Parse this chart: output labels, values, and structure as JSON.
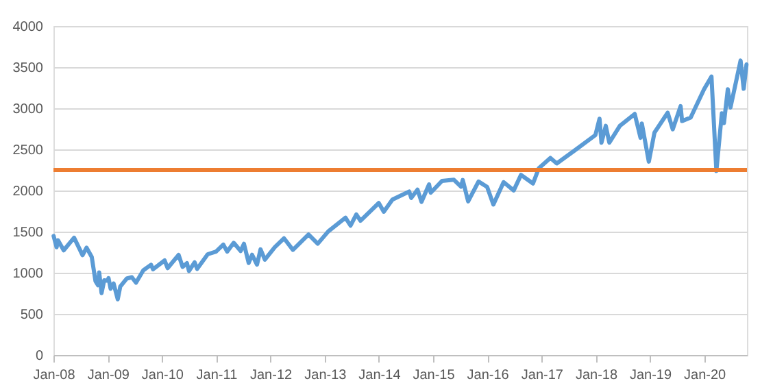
{
  "chart_data": {
    "type": "line",
    "x": [
      "2008-01-02",
      "2008-01-22",
      "2008-02-01",
      "2008-03-10",
      "2008-05-19",
      "2008-07-15",
      "2008-08-11",
      "2008-09-15",
      "2008-10-10",
      "2008-10-27",
      "2008-11-04",
      "2008-11-20",
      "2008-12-08",
      "2008-12-31",
      "2009-01-06",
      "2009-01-20",
      "2009-02-09",
      "2009-03-09",
      "2009-03-26",
      "2009-05-08",
      "2009-06-12",
      "2009-07-10",
      "2009-08-28",
      "2009-10-19",
      "2009-11-02",
      "2010-01-19",
      "2010-02-08",
      "2010-04-23",
      "2010-05-20",
      "2010-06-18",
      "2010-07-02",
      "2010-08-09",
      "2010-08-26",
      "2010-11-05",
      "2010-12-31",
      "2011-02-18",
      "2011-03-16",
      "2011-04-29",
      "2011-06-15",
      "2011-07-07",
      "2011-08-08",
      "2011-08-31",
      "2011-10-03",
      "2011-10-27",
      "2011-11-25",
      "2012-01-31",
      "2012-04-02",
      "2012-06-01",
      "2012-09-14",
      "2012-11-15",
      "2013-01-25",
      "2013-05-21",
      "2013-06-24",
      "2013-08-02",
      "2013-08-30",
      "2013-12-31",
      "2014-02-03",
      "2014-04-02",
      "2014-07-24",
      "2014-08-07",
      "2014-09-18",
      "2014-10-15",
      "2014-12-05",
      "2014-12-16",
      "2015-03-02",
      "2015-05-21",
      "2015-07-08",
      "2015-07-20",
      "2015-08-25",
      "2015-11-03",
      "2015-12-31",
      "2016-02-11",
      "2016-04-20",
      "2016-06-27",
      "2016-08-15",
      "2016-11-04",
      "2016-12-13",
      "2017-03-01",
      "2017-04-13",
      "2017-08-07",
      "2017-12-29",
      "2018-01-26",
      "2018-02-08",
      "2018-03-09",
      "2018-04-02",
      "2018-06-12",
      "2018-09-20",
      "2018-10-29",
      "2018-11-07",
      "2018-12-24",
      "2019-01-31",
      "2019-04-30",
      "2019-06-03",
      "2019-07-26",
      "2019-08-05",
      "2019-10-02",
      "2019-12-31",
      "2020-02-19",
      "2020-03-23",
      "2020-04-29",
      "2020-05-13",
      "2020-06-08",
      "2020-06-26",
      "2020-09-02",
      "2020-09-23",
      "2020-10-12"
    ],
    "series": [
      {
        "color": "#5b9bd5",
        "values": [
          1447,
          1310,
          1395,
          1273,
          1426,
          1214,
          1305,
          1192,
          899,
          848,
          1005,
          752,
          909,
          903,
          935,
          805,
          870,
          677,
          832,
          929,
          946,
          879,
          1029,
          1097,
          1042,
          1150,
          1056,
          1217,
          1071,
          1117,
          1022,
          1127,
          1047,
          1225,
          1258,
          1343,
          1257,
          1364,
          1265,
          1353,
          1119,
          1219,
          1099,
          1285,
          1159,
          1312,
          1419,
          1278,
          1466,
          1353,
          1503,
          1669,
          1573,
          1709,
          1633,
          1848,
          1742,
          1890,
          1988,
          1910,
          2011,
          1862,
          2075,
          1973,
          2117,
          2131,
          2046,
          2128,
          1868,
          2109,
          2044,
          1829,
          2102,
          2001,
          2190,
          2085,
          2271,
          2396,
          2329,
          2481,
          2674,
          2873,
          2581,
          2786,
          2582,
          2787,
          2931,
          2641,
          2814,
          2351,
          2704,
          2946,
          2744,
          3026,
          2845,
          2888,
          3231,
          3386,
          2237,
          2940,
          2820,
          3232,
          3009,
          3580,
          3237,
          3534
        ]
      }
    ],
    "xlim": [
      "2008-01-01",
      "2020-10-15"
    ],
    "xticks": [
      {
        "value": "2008-01-01",
        "label": "Jan-08"
      },
      {
        "value": "2009-01-01",
        "label": "Jan-09"
      },
      {
        "value": "2010-01-01",
        "label": "Jan-10"
      },
      {
        "value": "2011-01-01",
        "label": "Jan-11"
      },
      {
        "value": "2012-01-01",
        "label": "Jan-12"
      },
      {
        "value": "2013-01-01",
        "label": "Jan-13"
      },
      {
        "value": "2014-01-01",
        "label": "Jan-14"
      },
      {
        "value": "2015-01-01",
        "label": "Jan-15"
      },
      {
        "value": "2016-01-01",
        "label": "Jan-16"
      },
      {
        "value": "2017-01-01",
        "label": "Jan-17"
      },
      {
        "value": "2018-01-01",
        "label": "Jan-18"
      },
      {
        "value": "2019-01-01",
        "label": "Jan-19"
      },
      {
        "value": "2020-01-01",
        "label": "Jan-20"
      }
    ],
    "ylim": [
      0,
      4000
    ],
    "yticks": [
      0,
      500,
      1000,
      1500,
      2000,
      2500,
      3000,
      3500,
      4000
    ],
    "ref_lines": [
      {
        "axis": "y",
        "value": 2250,
        "color": "#ed7d31"
      }
    ],
    "grid": "y",
    "marker": "none",
    "line_style": "solid"
  }
}
